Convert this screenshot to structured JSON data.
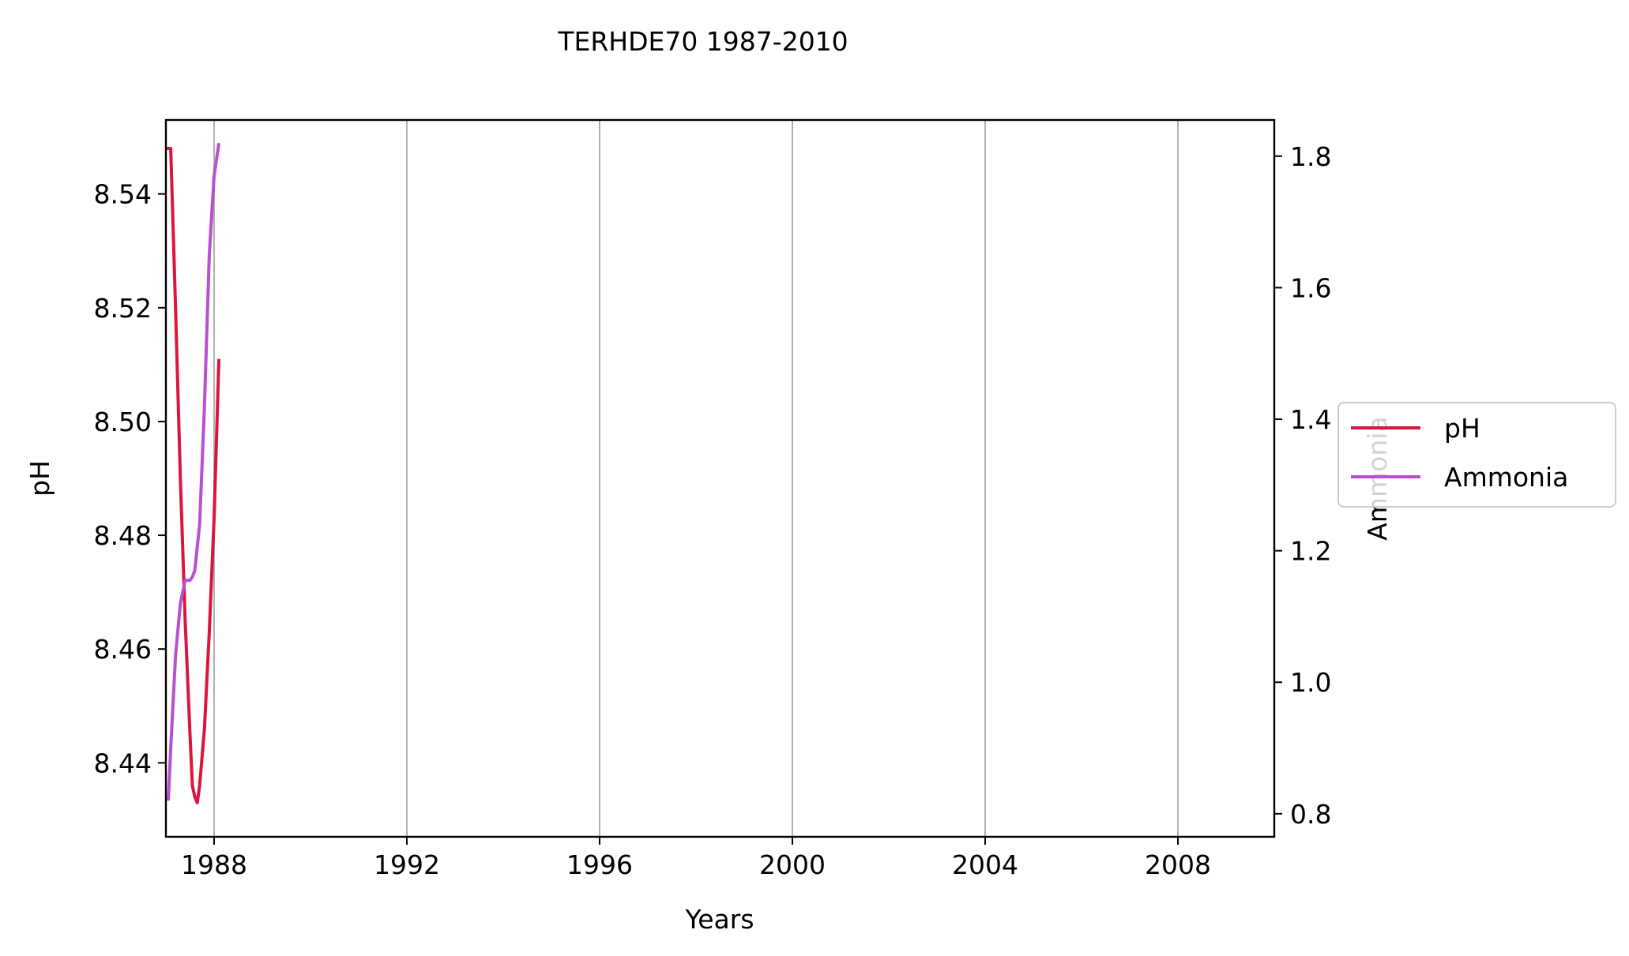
{
  "chart_data": {
    "type": "line",
    "title": "TERHDE70 1987-2010",
    "xlabel": "Years",
    "ylabel": "pH",
    "y2label": "Ammonia",
    "xlim": [
      1987.0,
      2010.0
    ],
    "ylim": [
      8.427,
      8.553
    ],
    "y2lim": [
      0.765,
      1.855
    ],
    "xticks": [
      1988,
      1992,
      1996,
      2000,
      2004,
      2008
    ],
    "yticks": [
      8.44,
      8.46,
      8.48,
      8.5,
      8.52,
      8.54
    ],
    "y2ticks": [
      0.8,
      1.0,
      1.2,
      1.4,
      1.6,
      1.8
    ],
    "grid": "vertical lines at x ticks",
    "legend": "right, outside axes",
    "series": [
      {
        "name": "pH",
        "axis": "left",
        "color": "#dc143c",
        "x": [
          1987.0,
          1987.1,
          1987.2,
          1987.3,
          1987.4,
          1987.5,
          1987.55,
          1987.6,
          1987.65,
          1987.7,
          1987.8,
          1987.9,
          1988.0,
          1988.1
        ],
        "y": [
          8.548,
          8.548,
          8.52,
          8.49,
          8.465,
          8.445,
          8.436,
          8.434,
          8.433,
          8.436,
          8.446,
          8.463,
          8.483,
          8.511
        ]
      },
      {
        "name": "Ammonia",
        "axis": "right",
        "color": "#b94fd1",
        "x": [
          1987.05,
          1987.1,
          1987.2,
          1987.3,
          1987.4,
          1987.5,
          1987.55,
          1987.6,
          1987.7,
          1987.8,
          1987.9,
          1988.0,
          1988.1
        ],
        "y": [
          0.82,
          0.9,
          1.04,
          1.12,
          1.155,
          1.155,
          1.16,
          1.17,
          1.24,
          1.42,
          1.65,
          1.77,
          1.82
        ]
      }
    ]
  }
}
